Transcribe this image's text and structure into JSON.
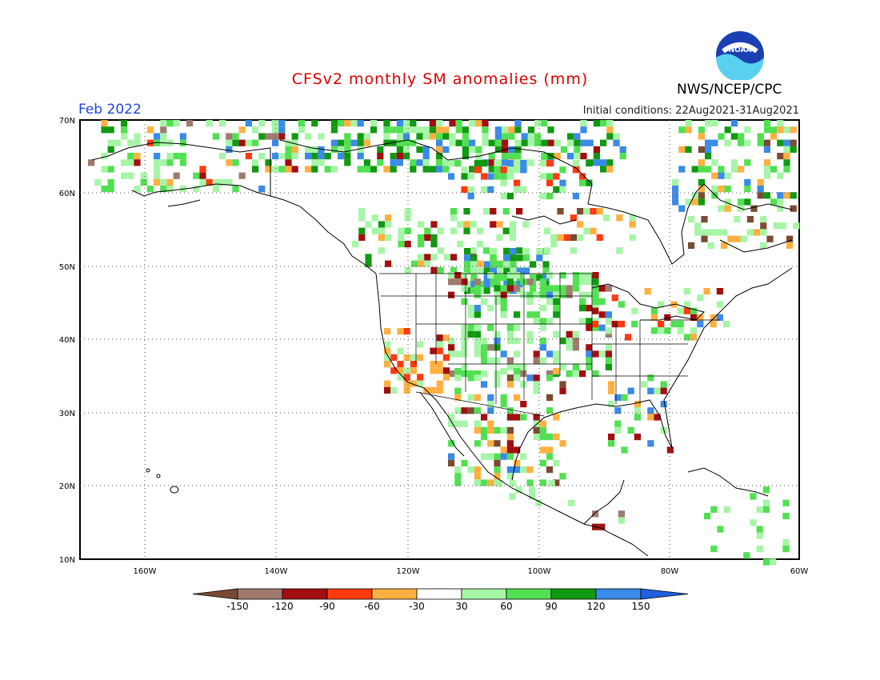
{
  "header": {
    "title": "CFSv2 monthly SM anomalies (mm)",
    "agency": "NWS/NCEP/CPC",
    "logo_text": "NOAA"
  },
  "map": {
    "period": "Feb 2022",
    "initial_conditions": "Initial conditions: 22Aug2021-31Aug2021",
    "lat_labels": [
      "70N",
      "60N",
      "50N",
      "40N",
      "30N",
      "20N",
      "10N"
    ],
    "lon_labels": [
      "160W",
      "140W",
      "120W",
      "100W",
      "80W",
      "60W"
    ]
  },
  "legend": {
    "labels": [
      "-150",
      "-120",
      "-90",
      "-60",
      "-30",
      "30",
      "60",
      "90",
      "120",
      "150"
    ],
    "colors": [
      "#7a4b33",
      "#a07a6e",
      "#a10f0f",
      "#ff3a10",
      "#ffb040",
      "#ffffff",
      "#a6f5a6",
      "#52e052",
      "#119911",
      "#3a8ae8",
      "#2060e0"
    ]
  }
}
